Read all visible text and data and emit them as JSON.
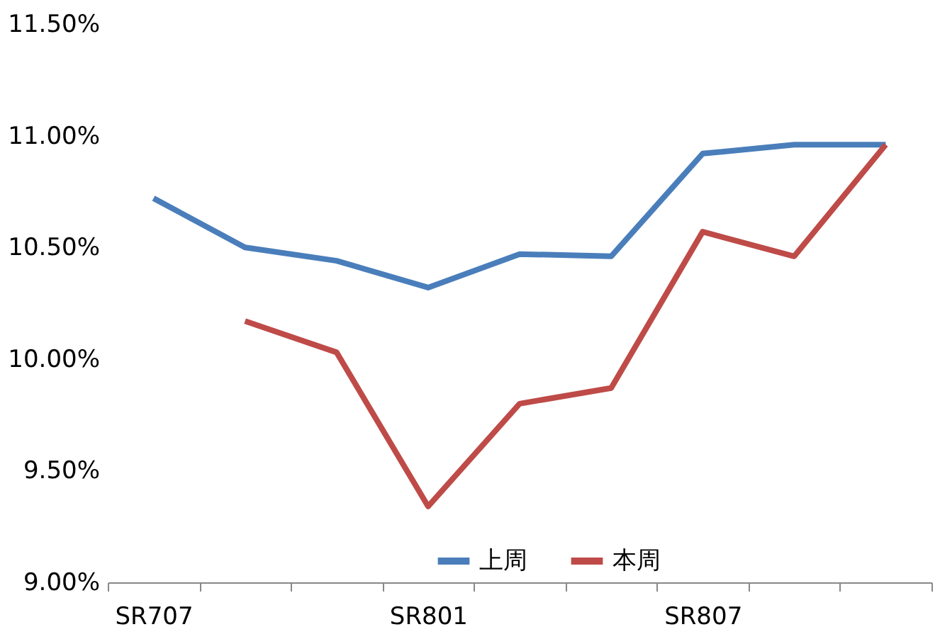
{
  "chart_data": {
    "type": "line",
    "categories": [
      "SR707",
      null,
      null,
      "SR801",
      null,
      null,
      "SR807",
      null,
      null
    ],
    "series": [
      {
        "name": "上周",
        "color": "#4a7ebb",
        "values": [
          10.72,
          10.5,
          10.44,
          10.32,
          10.47,
          10.46,
          10.92,
          10.96,
          10.96
        ]
      },
      {
        "name": "本周",
        "color": "#be4b48",
        "values": [
          null,
          10.17,
          10.03,
          9.34,
          9.8,
          9.87,
          10.57,
          10.46,
          10.96
        ]
      }
    ],
    "ylim": [
      9.0,
      11.5
    ],
    "yticks": [
      {
        "value": 9.0,
        "label": "9.00%"
      },
      {
        "value": 9.5,
        "label": "9.50%"
      },
      {
        "value": 10.0,
        "label": "10.00%"
      },
      {
        "value": 10.5,
        "label": "10.50%"
      },
      {
        "value": 11.0,
        "label": "11.00%"
      },
      {
        "value": 11.5,
        "label": "11.50%"
      }
    ],
    "grid": false,
    "legend": "bottom",
    "marker": "none",
    "line_style": "solid"
  }
}
